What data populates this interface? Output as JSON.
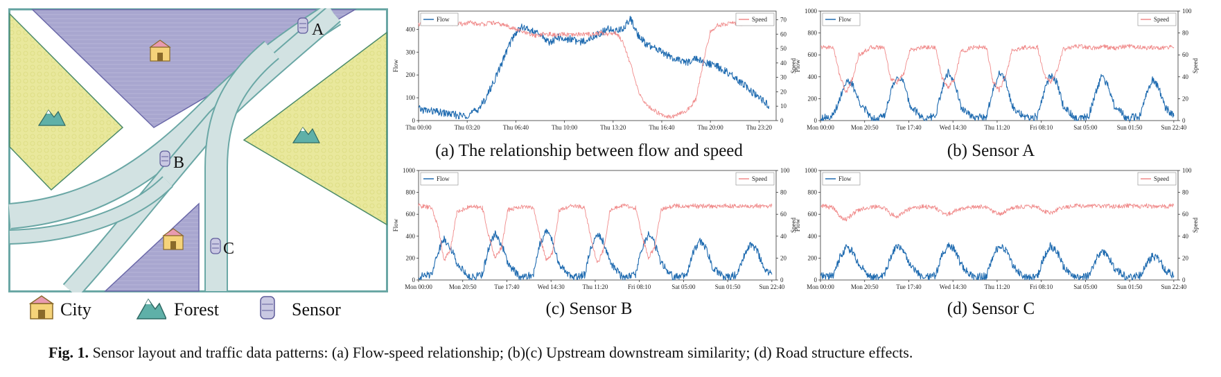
{
  "map": {
    "sensor_labels": [
      "A",
      "B",
      "C"
    ],
    "legend": [
      {
        "label": "City",
        "icon": "city-icon"
      },
      {
        "label": "Forest",
        "icon": "forest-icon"
      },
      {
        "label": "Sensor",
        "icon": "sensor-icon"
      }
    ],
    "colors": {
      "road": "#d2e2e2",
      "road_border": "#6aa7a5",
      "city": "#a8a6cf",
      "forest": "#e9e89c",
      "mountain": "#5fb0a8"
    }
  },
  "caption": {
    "label": "Fig. 1.",
    "text": "Sensor layout and traffic data patterns: (a) Flow-speed relationship; (b)(c) Upstream downstream similarity; (d) Road structure effects."
  },
  "colors": {
    "flow": "#1f6bb0",
    "speed": "#f08a8a"
  },
  "chart_data": [
    {
      "id": "a",
      "type": "line",
      "caption": "(a) The relationship between flow and speed",
      "xlabel": "",
      "ylabel": "Flow",
      "y2label": "Speed",
      "ylim": [
        0,
        480
      ],
      "yticks": [
        0,
        100,
        200,
        300,
        400
      ],
      "y2lim": [
        0,
        76
      ],
      "y2ticks": [
        0,
        10,
        20,
        30,
        40,
        50,
        60,
        70
      ],
      "xticklabels": [
        "Thu 00:00",
        "Thu 03:20",
        "Thu 06:40",
        "Thu 10:00",
        "Thu 13:20",
        "Thu 16:40",
        "Thu 20:00",
        "Thu 23:20"
      ],
      "xlim": [
        0,
        24.5
      ],
      "legend": {
        "flow": "Flow",
        "speed": "Speed"
      },
      "series": [
        {
          "name": "Flow",
          "axis": "left",
          "x": [
            0.0,
            0.5,
            1.0,
            1.5,
            2.0,
            2.5,
            3.0,
            3.5,
            4.0,
            4.5,
            5.0,
            5.5,
            6.0,
            6.5,
            7.0,
            7.5,
            8.0,
            8.5,
            9.0,
            9.5,
            10.0,
            10.5,
            11.0,
            11.5,
            12.0,
            12.5,
            13.0,
            13.5,
            14.0,
            14.5,
            15.0,
            15.5,
            16.0,
            16.5,
            17.0,
            17.5,
            18.0,
            18.5,
            19.0,
            19.5,
            20.0,
            20.5,
            21.0,
            21.5,
            22.0,
            22.5,
            23.0,
            23.5,
            24.0
          ],
          "values": [
            50,
            45,
            40,
            35,
            30,
            25,
            20,
            28,
            45,
            85,
            150,
            220,
            300,
            370,
            410,
            400,
            385,
            370,
            340,
            365,
            355,
            360,
            340,
            355,
            370,
            385,
            400,
            395,
            400,
            450,
            380,
            340,
            320,
            310,
            290,
            270,
            260,
            255,
            275,
            255,
            245,
            235,
            220,
            195,
            170,
            145,
            115,
            90,
            65
          ]
        },
        {
          "name": "Speed",
          "axis": "right",
          "x": [
            0.0,
            0.5,
            1.0,
            1.5,
            2.0,
            2.5,
            3.0,
            3.5,
            4.0,
            4.5,
            5.0,
            5.5,
            6.0,
            6.5,
            7.0,
            7.5,
            8.0,
            8.5,
            9.0,
            9.5,
            10.0,
            10.5,
            11.0,
            11.5,
            12.0,
            12.5,
            13.0,
            13.5,
            14.0,
            14.5,
            15.0,
            15.5,
            16.0,
            16.5,
            17.0,
            17.5,
            18.0,
            18.5,
            19.0,
            19.5,
            20.0,
            20.5,
            21.0,
            21.5,
            22.0,
            22.5,
            23.0,
            23.5,
            24.0
          ],
          "values": [
            67,
            67,
            68,
            67,
            68,
            67,
            67,
            68,
            67,
            67,
            68,
            67,
            66,
            64,
            62,
            60,
            59,
            60,
            60,
            59,
            60,
            59,
            60,
            60,
            60,
            61,
            60,
            61,
            55,
            40,
            22,
            12,
            8,
            5,
            3,
            3,
            5,
            8,
            15,
            40,
            62,
            66,
            67,
            68,
            67,
            68,
            67,
            68,
            67
          ]
        }
      ]
    },
    {
      "id": "b",
      "type": "line",
      "caption": "(b) Sensor A",
      "xlabel": "",
      "ylabel": "Flow",
      "y2label": "Speed",
      "ylim": [
        0,
        1000
      ],
      "yticks": [
        0,
        200,
        400,
        600,
        800,
        1000
      ],
      "y2lim": [
        0,
        100
      ],
      "y2ticks": [
        0,
        20,
        40,
        60,
        80,
        100
      ],
      "xticklabels": [
        "Mon 00:00",
        "Mon 20:50",
        "Tue 17:40",
        "Wed 14:30",
        "Thu 11:20",
        "Fri 08:10",
        "Sat 05:00",
        "Sun 01:50",
        "Sun 22:40"
      ],
      "xlim": [
        0,
        168
      ],
      "legend": {
        "flow": "Flow",
        "speed": "Speed"
      },
      "series": [
        {
          "name": "Flow",
          "axis": "left",
          "x": [
            0,
            6,
            9,
            12,
            15,
            18,
            24,
            30,
            33,
            36,
            39,
            42,
            48,
            54,
            57,
            60,
            63,
            66,
            72,
            78,
            81,
            84,
            87,
            90,
            96,
            102,
            105,
            108,
            111,
            114,
            120,
            126,
            129,
            132,
            135,
            138,
            144,
            150,
            153,
            156,
            159,
            162,
            166
          ],
          "values": [
            30,
            40,
            200,
            360,
            330,
            180,
            20,
            40,
            260,
            410,
            350,
            140,
            20,
            40,
            280,
            440,
            360,
            120,
            20,
            40,
            270,
            450,
            370,
            140,
            20,
            40,
            250,
            420,
            350,
            140,
            20,
            40,
            240,
            400,
            330,
            140,
            20,
            40,
            230,
            370,
            300,
            120,
            40
          ]
        },
        {
          "name": "Speed",
          "axis": "right",
          "x": [
            0,
            6,
            9,
            12,
            15,
            18,
            24,
            30,
            33,
            36,
            39,
            42,
            48,
            54,
            57,
            60,
            63,
            66,
            72,
            78,
            81,
            84,
            87,
            90,
            96,
            102,
            105,
            108,
            111,
            114,
            120,
            126,
            129,
            132,
            135,
            138,
            144,
            150,
            153,
            156,
            159,
            162,
            166
          ],
          "values": [
            67,
            67,
            42,
            25,
            38,
            60,
            67,
            67,
            38,
            35,
            42,
            64,
            67,
            67,
            40,
            30,
            38,
            63,
            67,
            67,
            36,
            28,
            40,
            64,
            67,
            67,
            42,
            35,
            45,
            65,
            68,
            67,
            66,
            68,
            67,
            66,
            68,
            67,
            66,
            67,
            66,
            67,
            67
          ]
        }
      ]
    },
    {
      "id": "c",
      "type": "line",
      "caption": "(c) Sensor B",
      "xlabel": "",
      "ylabel": "Flow",
      "y2label": "Speed",
      "ylim": [
        0,
        1000
      ],
      "yticks": [
        0,
        200,
        400,
        600,
        800,
        1000
      ],
      "y2lim": [
        0,
        100
      ],
      "y2ticks": [
        0,
        20,
        40,
        60,
        80,
        100
      ],
      "xticklabels": [
        "Mon 00:00",
        "Mon 20:50",
        "Tue 17:40",
        "Wed 14:30",
        "Thu 11:20",
        "Fri 08:10",
        "Sat 05:00",
        "Sun 01:50",
        "Sun 22:40"
      ],
      "xlim": [
        0,
        168
      ],
      "legend": {
        "flow": "Flow",
        "speed": "Speed"
      },
      "series": [
        {
          "name": "Flow",
          "axis": "left",
          "x": [
            0,
            6,
            9,
            12,
            15,
            18,
            24,
            30,
            33,
            36,
            39,
            42,
            48,
            54,
            57,
            60,
            63,
            66,
            72,
            78,
            81,
            84,
            87,
            90,
            96,
            102,
            105,
            108,
            111,
            114,
            120,
            126,
            129,
            132,
            135,
            138,
            144,
            150,
            153,
            156,
            159,
            162,
            166
          ],
          "values": [
            30,
            50,
            250,
            380,
            300,
            160,
            20,
            50,
            300,
            420,
            330,
            150,
            20,
            50,
            330,
            460,
            350,
            140,
            20,
            50,
            300,
            430,
            340,
            160,
            20,
            50,
            290,
            420,
            330,
            150,
            20,
            50,
            250,
            360,
            300,
            120,
            20,
            50,
            230,
            330,
            270,
            120,
            50
          ]
        },
        {
          "name": "Speed",
          "axis": "right",
          "x": [
            0,
            6,
            9,
            12,
            15,
            18,
            24,
            30,
            33,
            36,
            39,
            42,
            48,
            54,
            57,
            60,
            63,
            66,
            72,
            78,
            81,
            84,
            87,
            90,
            96,
            102,
            105,
            108,
            111,
            114,
            120,
            126,
            129,
            132,
            135,
            138,
            144,
            150,
            153,
            156,
            159,
            162,
            166
          ],
          "values": [
            68,
            66,
            50,
            18,
            28,
            62,
            67,
            66,
            40,
            20,
            30,
            64,
            67,
            66,
            40,
            18,
            25,
            63,
            68,
            66,
            38,
            15,
            28,
            64,
            68,
            66,
            40,
            20,
            30,
            64,
            68,
            67,
            68,
            67,
            68,
            67,
            68,
            67,
            68,
            67,
            68,
            67,
            68
          ]
        }
      ]
    },
    {
      "id": "d",
      "type": "line",
      "caption": "(d) Sensor C",
      "xlabel": "",
      "ylabel": "Flow",
      "y2label": "Speed",
      "ylim": [
        0,
        1000
      ],
      "yticks": [
        0,
        200,
        400,
        600,
        800,
        1000
      ],
      "y2lim": [
        0,
        100
      ],
      "y2ticks": [
        0,
        20,
        40,
        60,
        80,
        100
      ],
      "xticklabels": [
        "Mon 00:00",
        "Mon 20:50",
        "Tue 17:40",
        "Wed 14:30",
        "Thu 11:20",
        "Fri 08:10",
        "Sat 05:00",
        "Sun 01:50",
        "Sun 22:40"
      ],
      "xlim": [
        0,
        168
      ],
      "legend": {
        "flow": "Flow",
        "speed": "Speed"
      },
      "series": [
        {
          "name": "Flow",
          "axis": "left",
          "x": [
            0,
            6,
            9,
            12,
            15,
            18,
            24,
            30,
            33,
            36,
            39,
            42,
            48,
            54,
            57,
            60,
            63,
            66,
            72,
            78,
            81,
            84,
            87,
            90,
            96,
            102,
            105,
            108,
            111,
            114,
            120,
            126,
            129,
            132,
            135,
            138,
            144,
            150,
            153,
            156,
            159,
            162,
            166
          ],
          "values": [
            30,
            40,
            200,
            300,
            260,
            140,
            20,
            40,
            210,
            320,
            280,
            140,
            20,
            40,
            220,
            320,
            280,
            140,
            20,
            40,
            220,
            320,
            280,
            140,
            20,
            40,
            210,
            310,
            270,
            130,
            20,
            40,
            170,
            270,
            230,
            110,
            20,
            40,
            140,
            220,
            190,
            90,
            40
          ]
        },
        {
          "name": "Speed",
          "axis": "right",
          "x": [
            0,
            6,
            9,
            12,
            15,
            18,
            24,
            30,
            33,
            36,
            39,
            42,
            48,
            54,
            57,
            60,
            63,
            66,
            72,
            78,
            81,
            84,
            87,
            90,
            96,
            102,
            105,
            108,
            111,
            114,
            120,
            126,
            129,
            132,
            135,
            138,
            144,
            150,
            153,
            156,
            159,
            162,
            166
          ],
          "values": [
            68,
            66,
            58,
            55,
            60,
            64,
            67,
            66,
            60,
            58,
            62,
            65,
            67,
            66,
            62,
            60,
            63,
            65,
            67,
            67,
            62,
            60,
            63,
            66,
            67,
            67,
            63,
            61,
            64,
            66,
            68,
            67,
            68,
            67,
            68,
            67,
            68,
            67,
            68,
            67,
            68,
            67,
            68
          ]
        }
      ]
    }
  ]
}
